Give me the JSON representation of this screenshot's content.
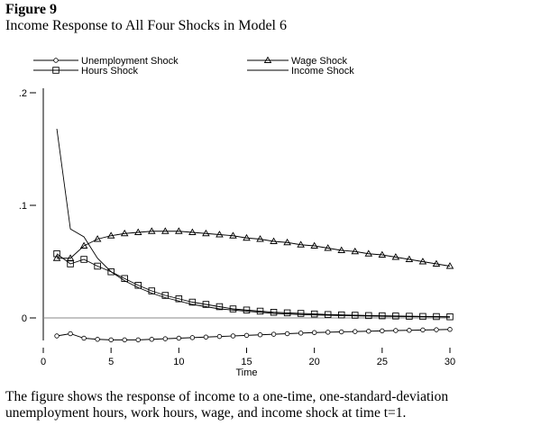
{
  "figure": {
    "label": "Figure 9",
    "title": "Income Response to All Four Shocks in Model 6",
    "caption_lines": [
      "The figure shows the response of income to a one-time, one-standard-deviation",
      "unemployment hours, work hours, wage, and income shock at time t=1."
    ]
  },
  "chart_data": {
    "type": "line",
    "title": "Income Response to All Four Shocks in Model 6",
    "xlabel": "Time",
    "ylabel": "",
    "xlim": [
      0,
      30
    ],
    "ylim": [
      -0.02,
      0.2
    ],
    "xticks": [
      0,
      5,
      10,
      15,
      20,
      25,
      30
    ],
    "xtick_labels": [
      "0",
      "5",
      "10",
      "15",
      "20",
      "25",
      "30"
    ],
    "yticks": [
      0,
      0.1,
      0.2
    ],
    "ytick_labels": [
      "0",
      ".1",
      ".2"
    ],
    "reference_line": 0,
    "legend_placement": "top",
    "x": [
      1,
      2,
      3,
      4,
      5,
      6,
      7,
      8,
      9,
      10,
      11,
      12,
      13,
      14,
      15,
      16,
      17,
      18,
      19,
      20,
      21,
      22,
      23,
      24,
      25,
      26,
      27,
      28,
      29,
      30
    ],
    "series": [
      {
        "name": "Unemployment Shock",
        "marker": "circle",
        "values": [
          -0.016,
          -0.014,
          -0.018,
          -0.019,
          -0.0195,
          -0.0195,
          -0.0195,
          -0.019,
          -0.0185,
          -0.018,
          -0.0175,
          -0.017,
          -0.0165,
          -0.016,
          -0.0155,
          -0.015,
          -0.0145,
          -0.014,
          -0.0135,
          -0.013,
          -0.0127,
          -0.0124,
          -0.0121,
          -0.0118,
          -0.0115,
          -0.0112,
          -0.011,
          -0.0107,
          -0.0105,
          -0.0102
        ]
      },
      {
        "name": "Wage Shock",
        "marker": "triangle",
        "values": [
          0.053,
          0.053,
          0.064,
          0.07,
          0.073,
          0.075,
          0.076,
          0.077,
          0.077,
          0.077,
          0.076,
          0.075,
          0.074,
          0.073,
          0.071,
          0.07,
          0.068,
          0.067,
          0.065,
          0.064,
          0.062,
          0.06,
          0.059,
          0.057,
          0.056,
          0.054,
          0.052,
          0.05,
          0.048,
          0.046
        ]
      },
      {
        "name": "Hours Shock",
        "marker": "square",
        "values": [
          0.057,
          0.048,
          0.052,
          0.046,
          0.041,
          0.035,
          0.029,
          0.024,
          0.02,
          0.017,
          0.014,
          0.012,
          0.01,
          0.008,
          0.007,
          0.006,
          0.005,
          0.0045,
          0.004,
          0.0035,
          0.003,
          0.0027,
          0.0024,
          0.0021,
          0.0019,
          0.0017,
          0.0015,
          0.0013,
          0.0012,
          0.001
        ]
      },
      {
        "name": "Income Shock",
        "marker": "none",
        "values": [
          0.168,
          0.079,
          0.072,
          0.053,
          0.041,
          0.033,
          0.027,
          0.022,
          0.018,
          0.015,
          0.012,
          0.01,
          0.008,
          0.007,
          0.006,
          0.005,
          0.004,
          0.0035,
          0.003,
          0.0027,
          0.0024,
          0.0021,
          0.0019,
          0.0017,
          0.0015,
          0.0013,
          0.0012,
          0.0011,
          0.001,
          0.0009
        ]
      }
    ]
  }
}
